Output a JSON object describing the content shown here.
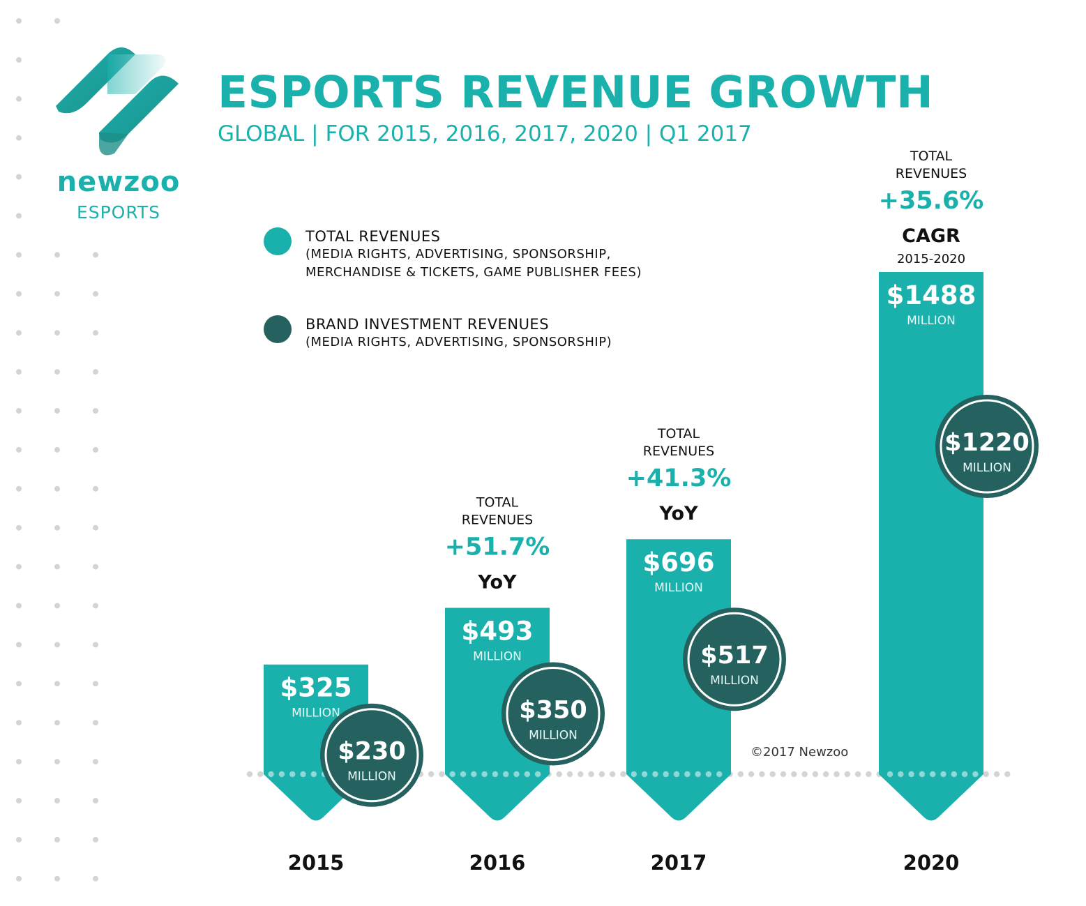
{
  "brand": {
    "name": "newzoo",
    "division": "ESPORTS"
  },
  "header": {
    "title": "ESPORTS REVENUE GROWTH",
    "subtitle": "GLOBAL | FOR 2015, 2016, 2017, 2020 | Q1 2017"
  },
  "legend": [
    {
      "label": "TOTAL REVENUES",
      "detail": [
        "(MEDIA RIGHTS, ADVERTISING, SPONSORSHIP,",
        "MERCHANDISE & TICKETS, GAME PUBLISHER FEES)"
      ],
      "color": "#1ab1ad"
    },
    {
      "label": "BRAND INVESTMENT REVENUES",
      "detail": [
        "(MEDIA RIGHTS, ADVERTISING, SPONSORSHIP)"
      ],
      "color": "#25625f"
    }
  ],
  "colors": {
    "teal": "#1ab1ad",
    "dark_teal": "#25625f",
    "dots": "#d4d4d4"
  },
  "copyright": "©2017 Newzoo",
  "chart_data": {
    "type": "bar",
    "categories": [
      "2015",
      "2016",
      "2017",
      "2020"
    ],
    "unit": "MILLION",
    "series": [
      {
        "name": "TOTAL REVENUES",
        "values": [
          325,
          493,
          696,
          1488
        ],
        "labels": [
          "$325",
          "$493",
          "$696",
          "$1488"
        ]
      },
      {
        "name": "BRAND INVESTMENT REVENUES",
        "values": [
          230,
          350,
          517,
          1220
        ],
        "labels": [
          "$230",
          "$350",
          "$517",
          "$1220"
        ]
      }
    ],
    "annotations": [
      null,
      {
        "lines": [
          "TOTAL",
          "REVENUES"
        ],
        "value": "+51.7%",
        "metric": "YoY",
        "range": ""
      },
      {
        "lines": [
          "TOTAL",
          "REVENUES"
        ],
        "value": "+41.3%",
        "metric": "YoY",
        "range": ""
      },
      {
        "lines": [
          "TOTAL",
          "REVENUES"
        ],
        "value": "+35.6%",
        "metric": "CAGR",
        "range": "2015-2020"
      }
    ]
  }
}
